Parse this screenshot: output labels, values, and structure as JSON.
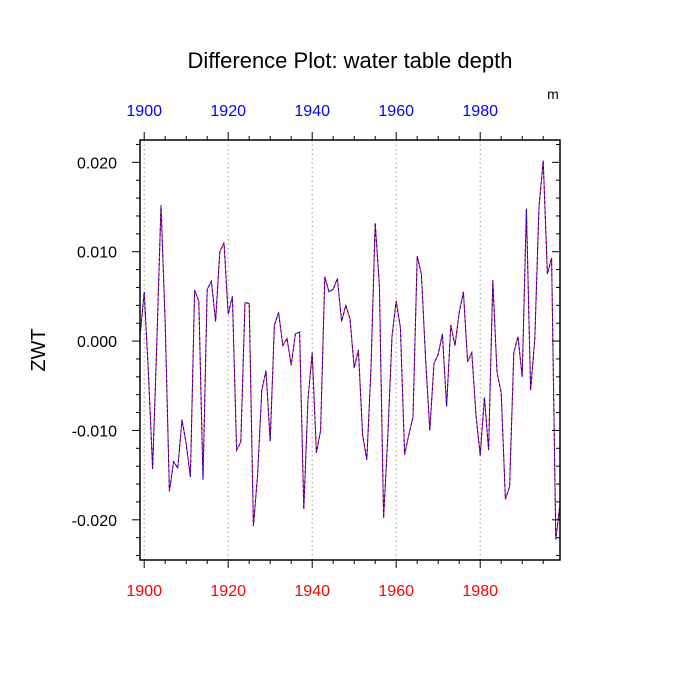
{
  "chart_data": {
    "type": "line",
    "title": "Difference Plot: water table depth",
    "units_label": "m",
    "ylabel": "ZWT",
    "xlabel": "",
    "xlim": [
      1899,
      1999
    ],
    "ylim": [
      -0.0245,
      0.0225
    ],
    "x_ticks": [
      1900,
      1920,
      1940,
      1960,
      1980
    ],
    "x_tick_labels": [
      "1900",
      "1920",
      "1940",
      "1960",
      "1980"
    ],
    "y_ticks": [
      -0.02,
      -0.01,
      0.0,
      0.01,
      0.02
    ],
    "y_tick_labels": [
      "-0.020",
      "-0.010",
      "0.000",
      "0.010",
      "0.020"
    ],
    "colors": {
      "series_a": "#ff0000",
      "series_b": "#0000ff",
      "bottom_tick_labels": "#ff0000",
      "top_tick_labels": "#0000ff",
      "grid": "#999999",
      "axes": "#000000"
    },
    "grid": "vertical dotted",
    "series": [
      {
        "name": "difference",
        "x": [
          1899,
          1900,
          1901,
          1902,
          1903,
          1904,
          1905,
          1906,
          1907,
          1908,
          1909,
          1910,
          1911,
          1912,
          1913,
          1914,
          1915,
          1916,
          1917,
          1918,
          1919,
          1920,
          1921,
          1922,
          1923,
          1924,
          1925,
          1926,
          1927,
          1928,
          1929,
          1930,
          1931,
          1932,
          1933,
          1934,
          1935,
          1936,
          1937,
          1938,
          1939,
          1940,
          1941,
          1942,
          1943,
          1944,
          1945,
          1946,
          1947,
          1948,
          1949,
          1950,
          1951,
          1952,
          1953,
          1954,
          1955,
          1956,
          1957,
          1958,
          1959,
          1960,
          1961,
          1962,
          1963,
          1964,
          1965,
          1966,
          1967,
          1968,
          1969,
          1970,
          1971,
          1972,
          1973,
          1974,
          1975,
          1976,
          1977,
          1978,
          1979,
          1980,
          1981,
          1982,
          1983,
          1984,
          1985,
          1986,
          1987,
          1988,
          1989,
          1990,
          1991,
          1992,
          1993,
          1994,
          1995,
          1996,
          1997,
          1998,
          1999
        ],
        "values": [
          0.0005,
          0.0055,
          -0.0035,
          -0.0143,
          -0.0003,
          0.0152,
          0.002,
          -0.0168,
          -0.0135,
          -0.0142,
          -0.0088,
          -0.0115,
          -0.0152,
          0.0057,
          0.0045,
          -0.0155,
          0.0058,
          0.0067,
          0.0022,
          0.01,
          0.011,
          0.003,
          0.005,
          -0.0122,
          -0.0113,
          0.0043,
          0.0042,
          -0.0207,
          -0.015,
          -0.0055,
          -0.0033,
          -0.0112,
          0.0018,
          0.0032,
          -0.0005,
          0.0003,
          -0.0027,
          0.0008,
          0.001,
          -0.0188,
          -0.0065,
          -0.0013,
          -0.0125,
          -0.01,
          0.0072,
          0.0055,
          0.0058,
          0.007,
          0.0022,
          0.004,
          0.0025,
          -0.003,
          -0.001,
          -0.0105,
          -0.0133,
          -0.003,
          0.0132,
          0.0062,
          -0.0198,
          -0.0107,
          0.0005,
          0.0045,
          0.0015,
          -0.0127,
          -0.0105,
          -0.0085,
          0.0095,
          0.0075,
          -0.002,
          -0.01,
          -0.0025,
          -0.0015,
          0.0008,
          -0.0073,
          0.0018,
          -0.0005,
          0.0032,
          0.0055,
          -0.0023,
          -0.0013,
          -0.0083,
          -0.0128,
          -0.0063,
          -0.0122,
          0.0068,
          -0.0035,
          -0.0058,
          -0.0177,
          -0.0163,
          -0.0013,
          0.0005,
          -0.004,
          0.0148,
          -0.0055,
          0.0002,
          0.015,
          0.0202,
          0.0075,
          0.0093,
          -0.0222,
          -0.0183
        ]
      }
    ]
  }
}
